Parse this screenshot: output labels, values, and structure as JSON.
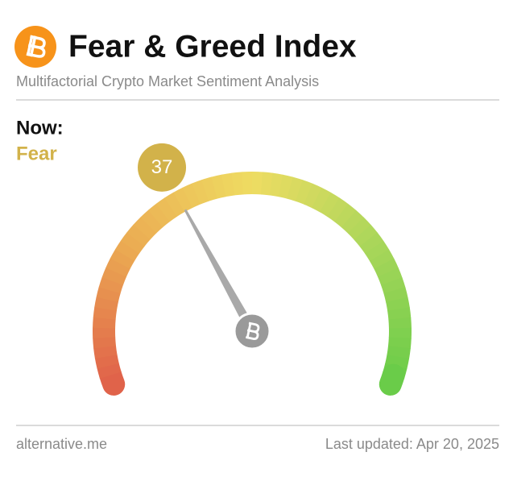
{
  "chart_data": {
    "type": "gauge",
    "title": "Fear & Greed Index",
    "subtitle": "Multifactorial Crypto Market Sentiment Analysis",
    "now_label": "Now:",
    "classification": "Fear",
    "value": 37,
    "ylim": [
      0,
      100
    ],
    "colors": [
      "#e0604a",
      "#ebab52",
      "#eedc62",
      "#a8d65a",
      "#68cc48"
    ],
    "accent_color": "#d2b24a",
    "source": "alternative.me",
    "updated": "Last updated: Apr 20, 2025"
  }
}
